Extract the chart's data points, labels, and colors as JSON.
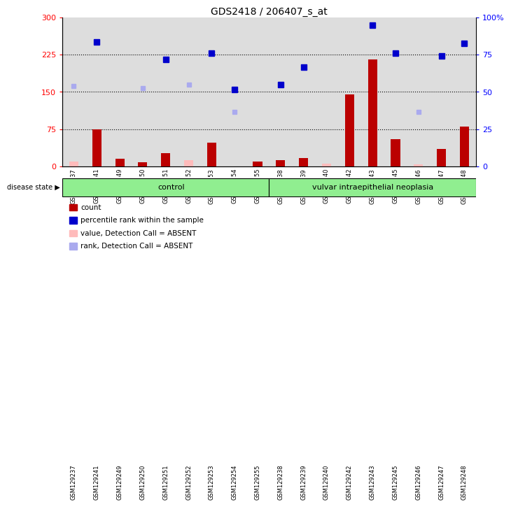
{
  "title": "GDS2418 / 206407_s_at",
  "samples": [
    "GSM129237",
    "GSM129241",
    "GSM129249",
    "GSM129250",
    "GSM129251",
    "GSM129252",
    "GSM129253",
    "GSM129254",
    "GSM129255",
    "GSM129238",
    "GSM129239",
    "GSM129240",
    "GSM129242",
    "GSM129243",
    "GSM129245",
    "GSM129246",
    "GSM129247",
    "GSM129248"
  ],
  "count_values": [
    null,
    75,
    15,
    8,
    27,
    null,
    48,
    null,
    10,
    12,
    17,
    null,
    145,
    215,
    55,
    null,
    35,
    80
  ],
  "count_absent_values": [
    10,
    null,
    null,
    null,
    null,
    12,
    null,
    null,
    null,
    null,
    null,
    5,
    null,
    null,
    null,
    4,
    null,
    null
  ],
  "percentile_values": [
    null,
    250,
    null,
    null,
    215,
    null,
    228,
    155,
    null,
    165,
    200,
    null,
    null,
    285,
    228,
    null,
    222,
    248
  ],
  "rank_absent_values": [
    162,
    null,
    null,
    158,
    null,
    165,
    null,
    110,
    null,
    null,
    null,
    null,
    null,
    null,
    null,
    110,
    null,
    null
  ],
  "n_control": 9,
  "n_neoplasia": 9,
  "group_label_1": "control",
  "group_label_2": "vulvar intraepithelial neoplasia",
  "disease_state_label": "disease state",
  "ylim_left": [
    0,
    300
  ],
  "yticks_left": [
    0,
    75,
    150,
    225,
    300
  ],
  "ytick_labels_left": [
    "0",
    "75",
    "150",
    "225",
    "300"
  ],
  "ytick_labels_right": [
    "0",
    "25",
    "50",
    "75",
    "100"
  ],
  "hlines": [
    75,
    150,
    225
  ],
  "bar_color": "#bb0000",
  "bar_absent_color": "#ffbbbb",
  "dot_color": "#0000cc",
  "dot_absent_color": "#aaaaee",
  "legend_items": [
    {
      "label": "count",
      "color": "#bb0000"
    },
    {
      "label": "percentile rank within the sample",
      "color": "#0000cc"
    },
    {
      "label": "value, Detection Call = ABSENT",
      "color": "#ffbbbb"
    },
    {
      "label": "rank, Detection Call = ABSENT",
      "color": "#aaaaee"
    }
  ],
  "bg_color": "#dddddd",
  "group_bg": "#90ee90",
  "plot_bg": "#ffffff",
  "fig_bg": "#ffffff"
}
